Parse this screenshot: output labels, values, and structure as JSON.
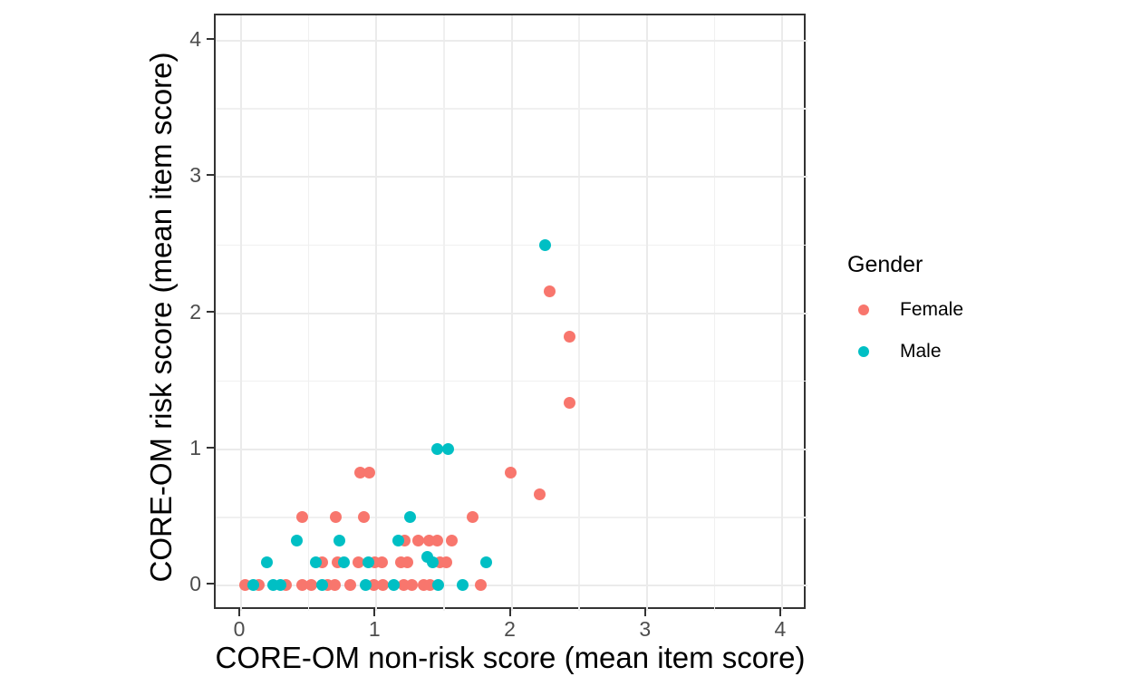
{
  "chart_data": {
    "type": "scatter",
    "title": "",
    "xlabel": "CORE-OM non-risk score (mean item score)",
    "ylabel": "CORE-OM risk score (mean item score)",
    "x_ticks": [
      0,
      1,
      2,
      3,
      4
    ],
    "y_ticks": [
      0,
      1,
      2,
      3,
      4
    ],
    "x_minor_ticks": [
      0.5,
      1.5,
      2.5,
      3.5
    ],
    "y_minor_ticks": [
      0.5,
      1.5,
      2.5,
      3.5
    ],
    "xlim": [
      -0.188,
      4.188
    ],
    "ylim": [
      -0.187,
      4.187
    ],
    "grid": true,
    "legend_position": "right",
    "legend": {
      "title": "Gender",
      "entries": [
        {
          "label": "Female",
          "color": "#F8766D"
        },
        {
          "label": "Male",
          "color": "#00BFC4"
        }
      ]
    },
    "series": [
      {
        "name": "Female",
        "color": "#F8766D",
        "points": [
          [
            0.03,
            0
          ],
          [
            0.13,
            0
          ],
          [
            0.33,
            0
          ],
          [
            0.45,
            0
          ],
          [
            0.52,
            0
          ],
          [
            0.64,
            0
          ],
          [
            0.69,
            0
          ],
          [
            0.81,
            0
          ],
          [
            0.98,
            0
          ],
          [
            1.05,
            0
          ],
          [
            1.2,
            0
          ],
          [
            1.26,
            0
          ],
          [
            1.35,
            0
          ],
          [
            1.4,
            0
          ],
          [
            1.77,
            0
          ],
          [
            0.6,
            0.17
          ],
          [
            0.71,
            0.17
          ],
          [
            0.87,
            0.17
          ],
          [
            0.99,
            0.17
          ],
          [
            1.04,
            0.17
          ],
          [
            1.18,
            0.17
          ],
          [
            1.23,
            0.17
          ],
          [
            1.47,
            0.17
          ],
          [
            1.52,
            0.17
          ],
          [
            1.21,
            0.33
          ],
          [
            1.31,
            0.33
          ],
          [
            1.39,
            0.33
          ],
          [
            1.45,
            0.33
          ],
          [
            1.56,
            0.33
          ],
          [
            0.45,
            0.5
          ],
          [
            0.7,
            0.5
          ],
          [
            0.91,
            0.5
          ],
          [
            1.71,
            0.5
          ],
          [
            0.88,
            0.83
          ],
          [
            0.95,
            0.83
          ],
          [
            1.99,
            0.83
          ],
          [
            2.21,
            0.67
          ],
          [
            2.28,
            2.16
          ],
          [
            2.43,
            1.83
          ],
          [
            2.43,
            1.34
          ]
        ]
      },
      {
        "name": "Male",
        "color": "#00BFC4",
        "points": [
          [
            0.09,
            0
          ],
          [
            0.24,
            0
          ],
          [
            0.29,
            0
          ],
          [
            0.6,
            0
          ],
          [
            0.92,
            0
          ],
          [
            1.13,
            0
          ],
          [
            1.46,
            0
          ],
          [
            1.64,
            0
          ],
          [
            0.19,
            0.17
          ],
          [
            0.55,
            0.17
          ],
          [
            0.76,
            0.17
          ],
          [
            0.94,
            0.17
          ],
          [
            1.42,
            0.17
          ],
          [
            1.38,
            0.21
          ],
          [
            1.81,
            0.17
          ],
          [
            0.41,
            0.33
          ],
          [
            0.73,
            0.33
          ],
          [
            1.16,
            0.33
          ],
          [
            1.25,
            0.5
          ],
          [
            1.45,
            1.0
          ],
          [
            1.53,
            1.0
          ],
          [
            2.25,
            2.5
          ]
        ]
      }
    ]
  },
  "colors": {
    "background": "#ffffff",
    "panel_background": "#ffffff",
    "panel_border": "#333333",
    "grid_major": "#ebebeb",
    "grid_minor": "#f0f0f0",
    "tick_label": "#4d4d4d",
    "female": "#F8766D",
    "male": "#00BFC4"
  },
  "layout_note": "scatter plot of CORE-OM risk vs non-risk mean item scores, colored by gender"
}
